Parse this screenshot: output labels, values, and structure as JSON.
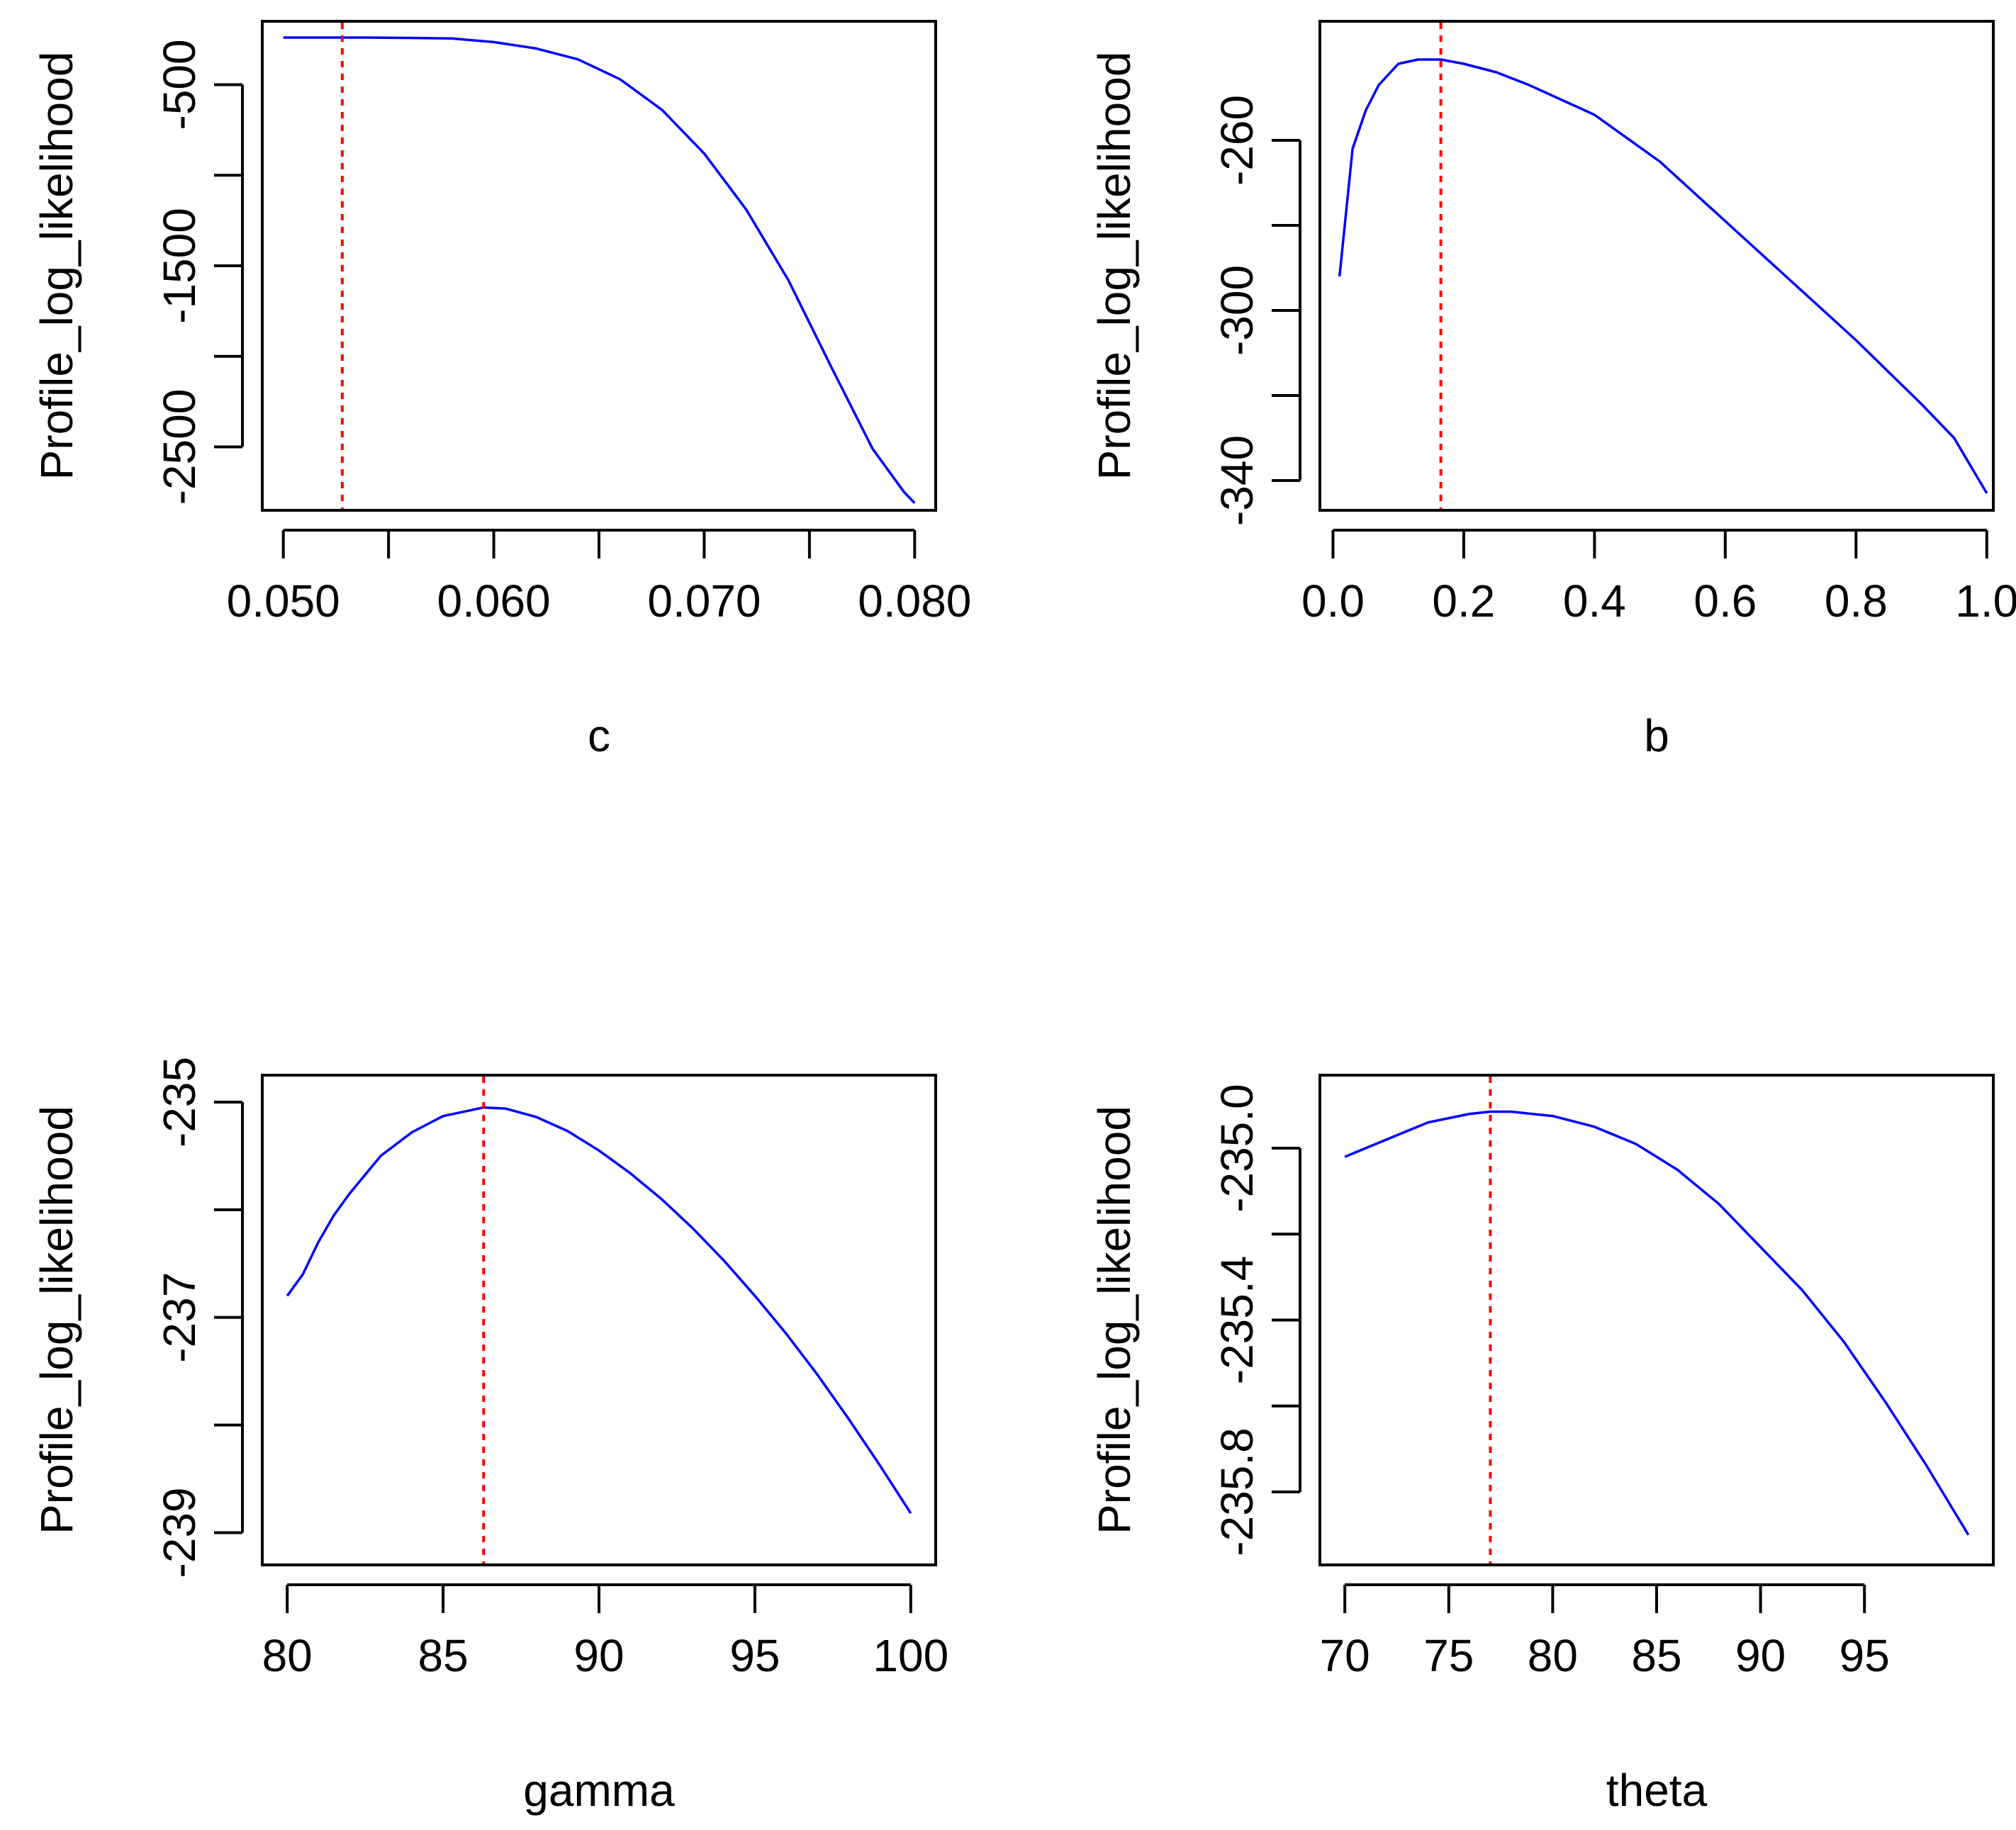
{
  "colors": {
    "curve": "#0000ff",
    "marker": "#ff0000",
    "axis": "#000000",
    "background": "#ffffff"
  },
  "chart_data": [
    {
      "type": "line",
      "xlabel": "c",
      "ylabel": "Profile_log_likelihood",
      "xlim": [
        0.049,
        0.081
      ],
      "ylim": [
        -2850,
        -150
      ],
      "xticks": [
        0.05,
        0.055,
        0.06,
        0.065,
        0.07,
        0.075,
        0.08
      ],
      "xtick_labels": [
        "0.050",
        "",
        "0.060",
        "",
        "0.070",
        "",
        "0.080"
      ],
      "yticks": [
        -500,
        -1000,
        -1500,
        -2000,
        -2500
      ],
      "ytick_labels": [
        "-500",
        "",
        "-1500",
        "",
        "-2500"
      ],
      "mle_x": 0.0528,
      "series": [
        {
          "name": "profile",
          "x": [
            0.05,
            0.052,
            0.054,
            0.056,
            0.058,
            0.06,
            0.062,
            0.064,
            0.066,
            0.068,
            0.07,
            0.072,
            0.074,
            0.076,
            0.078,
            0.0795,
            0.08
          ],
          "y": [
            -240,
            -240,
            -240,
            -242,
            -245,
            -265,
            -300,
            -360,
            -470,
            -640,
            -880,
            -1190,
            -1580,
            -2050,
            -2510,
            -2750,
            -2810
          ]
        }
      ]
    },
    {
      "type": "line",
      "xlabel": "b",
      "ylabel": "Profile_log_likelihood",
      "xlim": [
        -0.02,
        1.01
      ],
      "ylim": [
        -347,
        -232
      ],
      "xticks": [
        0,
        0.2,
        0.4,
        0.6,
        0.8,
        1.0
      ],
      "xtick_labels": [
        "0.0",
        "0.2",
        "0.4",
        "0.6",
        "0.8",
        "1.0"
      ],
      "yticks": [
        -260,
        -280,
        -300,
        -320,
        -340
      ],
      "ytick_labels": [
        "-260",
        "",
        "-300",
        "",
        "-340"
      ],
      "mle_x": 0.165,
      "series": [
        {
          "name": "profile",
          "x": [
            0.01,
            0.02,
            0.03,
            0.05,
            0.07,
            0.1,
            0.13,
            0.165,
            0.2,
            0.25,
            0.3,
            0.4,
            0.5,
            0.6,
            0.7,
            0.8,
            0.9,
            0.95,
            1.0
          ],
          "y": [
            -292,
            -277,
            -262,
            -253,
            -247,
            -242,
            -241,
            -241,
            -242,
            -244,
            -247,
            -254,
            -265,
            -279,
            -293,
            -307,
            -322,
            -330,
            -343
          ]
        }
      ]
    },
    {
      "type": "line",
      "xlabel": "gamma",
      "ylabel": "Profile_log_likelihood",
      "xlim": [
        79.2,
        100.8
      ],
      "ylim": [
        -239.3,
        -234.75
      ],
      "xticks": [
        80,
        85,
        90,
        95,
        100
      ],
      "xtick_labels": [
        "80",
        "85",
        "90",
        "95",
        "100"
      ],
      "yticks": [
        -235,
        -236,
        -237,
        -238,
        -239
      ],
      "ytick_labels": [
        "-235",
        "",
        "-237",
        "",
        "-239"
      ],
      "mle_x": 86.3,
      "series": [
        {
          "name": "profile",
          "x": [
            80,
            80.5,
            81,
            81.5,
            82,
            83,
            84,
            85,
            86.3,
            87,
            88,
            89,
            90,
            91,
            92,
            93,
            94,
            95,
            96,
            97,
            98,
            99,
            100
          ],
          "y": [
            -236.8,
            -236.6,
            -236.3,
            -236.05,
            -235.85,
            -235.5,
            -235.28,
            -235.13,
            -235.05,
            -235.06,
            -235.14,
            -235.27,
            -235.45,
            -235.66,
            -235.9,
            -236.17,
            -236.47,
            -236.8,
            -237.15,
            -237.53,
            -237.94,
            -238.37,
            -238.82
          ]
        }
      ]
    },
    {
      "type": "line",
      "xlabel": "theta",
      "ylabel": "Profile_log_likelihood",
      "xlim": [
        68.8,
        101.2
      ],
      "ylim": [
        -235.97,
        -234.83
      ],
      "xticks": [
        70,
        75,
        80,
        85,
        90,
        95
      ],
      "xtick_labels": [
        "70",
        "75",
        "80",
        "85",
        "90",
        "95"
      ],
      "yticks": [
        -235.0,
        -235.2,
        -235.4,
        -235.6,
        -235.8
      ],
      "ytick_labels": [
        "-235.0",
        "",
        "-235.4",
        "",
        "-235.8"
      ],
      "mle_x": 77,
      "series": [
        {
          "name": "profile",
          "x": [
            70,
            71,
            72,
            73,
            74,
            75,
            76,
            77,
            78,
            79,
            80,
            82,
            84,
            86,
            88,
            90,
            92,
            94,
            96,
            98,
            100
          ],
          "y": [
            -235.02,
            -235.0,
            -234.98,
            -234.96,
            -234.94,
            -234.93,
            -234.92,
            -234.915,
            -234.915,
            -234.92,
            -234.925,
            -234.95,
            -234.99,
            -235.05,
            -235.13,
            -235.23,
            -235.33,
            -235.45,
            -235.59,
            -235.74,
            -235.9
          ]
        }
      ]
    }
  ]
}
